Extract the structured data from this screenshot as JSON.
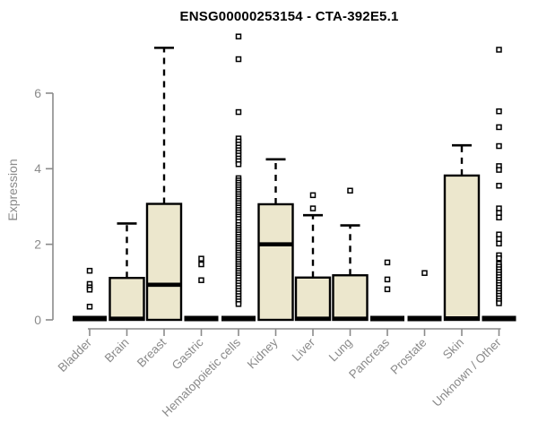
{
  "chart_data": {
    "type": "boxplot",
    "title": "ENSG00000253154 - CTA-392E5.1",
    "ylabel": "Expression",
    "ylim": [
      0,
      7.6
    ],
    "yticks": [
      0,
      2,
      4,
      6
    ],
    "grid": false,
    "legend": "none",
    "colors": {
      "box_fill": "#ece7cd",
      "box_stroke": "#000000",
      "median": "#000000",
      "whisker": "#000000",
      "outlier_stroke": "#000000",
      "outlier_fill": "#ffffff",
      "axis": "#8a8a8a",
      "text": "#8a8a8a",
      "title": "#000000"
    },
    "categories": [
      "Bladder",
      "Brain",
      "Breast",
      "Gastric",
      "Hematopoietic cells",
      "Kidney",
      "Liver",
      "Lung",
      "Pancreas",
      "Prostate",
      "Skin",
      "Unknown / Other"
    ],
    "series": [
      {
        "name": "Bladder",
        "q1": 0,
        "median": 0,
        "q3": 0,
        "whisker_low": 0,
        "whisker_high": 0,
        "outliers": [
          1.3,
          0.95,
          0.86,
          0.8,
          0.35
        ]
      },
      {
        "name": "Brain",
        "q1": 0,
        "median": 0.03,
        "q3": 1.11,
        "whisker_low": 0,
        "whisker_high": 2.55,
        "outliers": []
      },
      {
        "name": "Breast",
        "q1": 0,
        "median": 0.93,
        "q3": 3.07,
        "whisker_low": 0,
        "whisker_high": 7.2,
        "outliers": []
      },
      {
        "name": "Gastric",
        "q1": 0,
        "median": 0,
        "q3": 0,
        "whisker_low": 0,
        "whisker_high": 0,
        "outliers": [
          1.62,
          1.47,
          1.05
        ]
      },
      {
        "name": "Hematopoietic cells",
        "q1": 0,
        "median": 0,
        "q3": 0,
        "whisker_low": 0,
        "whisker_high": 0,
        "outliers": [
          7.5,
          6.9,
          5.5,
          4.8,
          4.72,
          4.64,
          4.56,
          4.49,
          4.42,
          4.35,
          4.27,
          4.2,
          4.12,
          3.75,
          3.69,
          3.63,
          3.57,
          3.51,
          3.45,
          3.39,
          3.33,
          3.27,
          3.21,
          3.15,
          3.09,
          3.03,
          2.97,
          2.91,
          2.85,
          2.79,
          2.73,
          2.67,
          2.59,
          2.51,
          2.44,
          2.38,
          2.32,
          2.26,
          2.2,
          2.14,
          2.08,
          2.02,
          1.96,
          1.9,
          1.84,
          1.78,
          1.72,
          1.66,
          1.6,
          1.54,
          1.48,
          1.42,
          1.36,
          1.3,
          1.24,
          1.18,
          1.12,
          1.05,
          0.98,
          0.91,
          0.84,
          0.77,
          0.7,
          0.63,
          0.56,
          0.49,
          0.42
        ]
      },
      {
        "name": "Kidney",
        "q1": 0,
        "median": 2.0,
        "q3": 3.06,
        "whisker_low": 0,
        "whisker_high": 4.25,
        "outliers": []
      },
      {
        "name": "Liver",
        "q1": 0,
        "median": 0.03,
        "q3": 1.12,
        "whisker_low": 0,
        "whisker_high": 2.77,
        "outliers": [
          3.3,
          2.95
        ]
      },
      {
        "name": "Lung",
        "q1": 0,
        "median": 0.03,
        "q3": 1.18,
        "whisker_low": 0,
        "whisker_high": 2.5,
        "outliers": [
          3.42
        ]
      },
      {
        "name": "Pancreas",
        "q1": 0,
        "median": 0,
        "q3": 0,
        "whisker_low": 0,
        "whisker_high": 0,
        "outliers": [
          1.52,
          1.07,
          0.81
        ]
      },
      {
        "name": "Prostate",
        "q1": 0,
        "median": 0,
        "q3": 0,
        "whisker_low": 0,
        "whisker_high": 0,
        "outliers": [
          1.24
        ]
      },
      {
        "name": "Skin",
        "q1": 0,
        "median": 0.04,
        "q3": 3.82,
        "whisker_low": 0,
        "whisker_high": 4.62,
        "outliers": []
      },
      {
        "name": "Unknown / Other",
        "q1": 0,
        "median": 0,
        "q3": 0,
        "whisker_low": 0,
        "whisker_high": 0,
        "outliers": [
          7.15,
          5.52,
          5.1,
          4.6,
          4.07,
          3.97,
          3.55,
          2.95,
          2.83,
          2.71,
          2.26,
          2.14,
          2.02,
          1.71,
          1.63,
          1.48,
          1.41,
          1.34,
          1.27,
          1.2,
          1.13,
          1.06,
          0.99,
          0.92,
          0.85,
          0.78,
          0.71,
          0.64,
          0.57,
          0.5,
          0.44
        ]
      }
    ]
  }
}
